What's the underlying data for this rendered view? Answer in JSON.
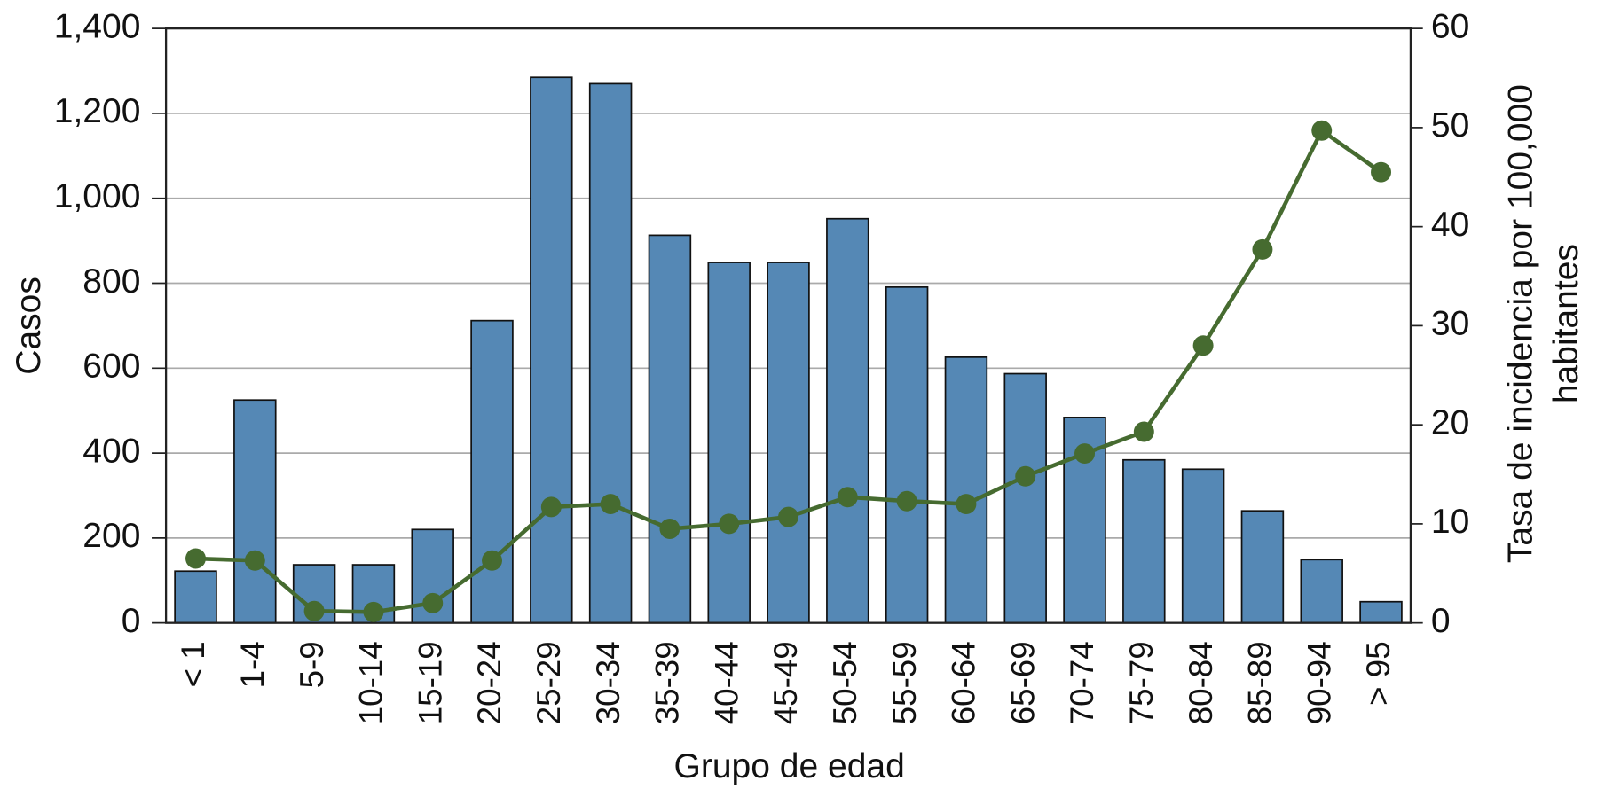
{
  "chart_data": {
    "type": "bar-line",
    "xlabel": "Grupo de edad",
    "ylabel": "Casos",
    "y2label": [
      "Tasa de incidencia por 100,000",
      "habitantes"
    ],
    "categories": [
      "< 1",
      "1-4",
      "5-9",
      "10-14",
      "15-19",
      "20-24",
      "25-29",
      "30-34",
      "35-39",
      "40-44",
      "45-49",
      "50-54",
      "55-59",
      "60-64",
      "65-69",
      "70-74",
      "75-79",
      "80-84",
      "85-89",
      "90-94",
      "> 95"
    ],
    "series": [
      {
        "type": "bar",
        "color": "#5588b5",
        "values": [
          122,
          525,
          137,
          137,
          220,
          712,
          1285,
          1270,
          913,
          849,
          849,
          952,
          791,
          626,
          587,
          484,
          384,
          362,
          264,
          149,
          50
        ]
      },
      {
        "type": "line",
        "axis": "y2",
        "color": "#466b30",
        "values": [
          6.5,
          6.3,
          1.2,
          1.1,
          2.0,
          6.3,
          11.7,
          12.0,
          9.5,
          10.0,
          10.7,
          12.7,
          12.3,
          12.0,
          14.8,
          17.1,
          19.3,
          28.0,
          37.7,
          49.7,
          45.5
        ]
      }
    ],
    "ylim": [
      0,
      1400
    ],
    "yticks": [
      0,
      200,
      400,
      600,
      800,
      {
        "value": 1000,
        "label": "1,000"
      },
      {
        "value": 1200,
        "label": "1,200"
      },
      {
        "value": 1400,
        "label": "1,400"
      }
    ],
    "y2lim": [
      0,
      60
    ],
    "y2ticks": [
      0,
      10,
      20,
      30,
      40,
      50,
      60
    ],
    "grid": true
  }
}
